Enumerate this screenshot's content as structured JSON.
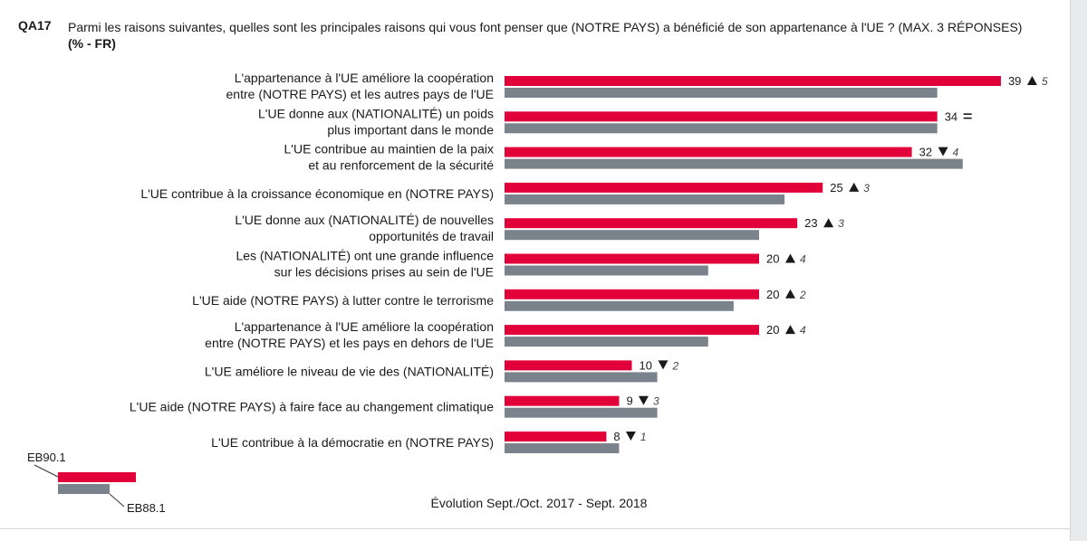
{
  "header": {
    "code": "QA17",
    "question": "Parmi les raisons suivantes, quelles sont les principales raisons qui vous font penser que (NOTRE PAYS) a bénéficié de son appartenance à l'UE ? (MAX. 3 RÉPONSES)",
    "unit": "(% - FR)"
  },
  "legend": {
    "current": "EB90.1",
    "previous": "EB88.1"
  },
  "evolution_note": "Évolution Sept./Oct. 2017 - Sept. 2018",
  "colors": {
    "current": "#e2003a",
    "previous": "#7a838b"
  },
  "chart_data": {
    "type": "bar",
    "orientation": "horizontal",
    "categories": [
      [
        "L'appartenance à l'UE améliore la coopération",
        "entre (NOTRE PAYS) et les autres pays de l'UE"
      ],
      [
        "L'UE donne aux (NATIONALITÉ) un poids",
        "plus important dans le monde"
      ],
      [
        "L'UE contribue au maintien de la paix",
        "et au renforcement de la sécurité"
      ],
      [
        "L'UE contribue à la croissance économique en (NOTRE PAYS)"
      ],
      [
        "L'UE donne aux (NATIONALITÉ) de nouvelles",
        "opportunités de travail"
      ],
      [
        "Les (NATIONALITÉ) ont une grande influence",
        "sur les décisions prises au sein de l'UE"
      ],
      [
        "L'UE aide (NOTRE PAYS) à lutter contre le terrorisme"
      ],
      [
        "L'appartenance à l'UE améliore la coopération",
        "entre (NOTRE PAYS) et les pays en dehors de l'UE"
      ],
      [
        "L'UE améliore le niveau de vie des (NATIONALITÉ)"
      ],
      [
        "L'UE aide (NOTRE PAYS) à faire face au changement climatique"
      ],
      [
        "L'UE contribue à la démocratie en (NOTRE PAYS)"
      ]
    ],
    "series": [
      {
        "name": "EB90.1",
        "values": [
          39,
          34,
          32,
          25,
          23,
          20,
          20,
          20,
          10,
          9,
          8
        ]
      },
      {
        "name": "EB88.1",
        "values": [
          34,
          34,
          36,
          22,
          20,
          16,
          18,
          16,
          12,
          12,
          9
        ]
      }
    ],
    "deltas": [
      {
        "dir": "up",
        "value": "5"
      },
      {
        "dir": "eq",
        "value": ""
      },
      {
        "dir": "down",
        "value": "4"
      },
      {
        "dir": "up",
        "value": "3"
      },
      {
        "dir": "up",
        "value": "3"
      },
      {
        "dir": "up",
        "value": "4"
      },
      {
        "dir": "up",
        "value": "2"
      },
      {
        "dir": "up",
        "value": "4"
      },
      {
        "dir": "down",
        "value": "2"
      },
      {
        "dir": "down",
        "value": "3"
      },
      {
        "dir": "down",
        "value": "1"
      }
    ],
    "xlim": [
      0,
      39
    ],
    "grid": false,
    "legend_position": "bottom-left"
  }
}
